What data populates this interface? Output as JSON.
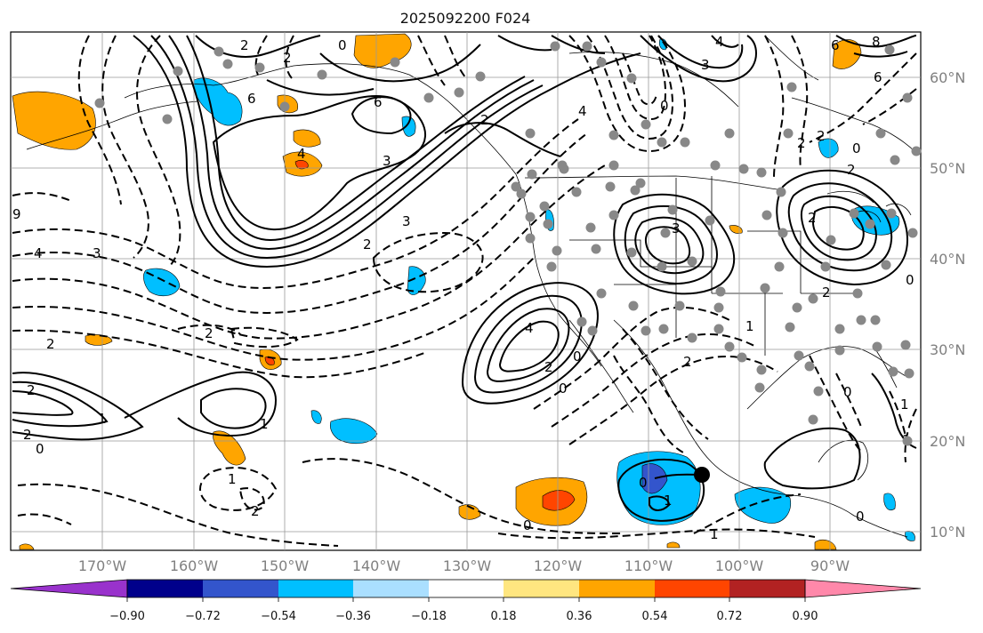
{
  "title": "2025092200 F024",
  "map": {
    "lat_labels": [
      "60°N",
      "50°N",
      "40°N",
      "30°N",
      "20°N",
      "10°N"
    ],
    "lon_labels": [
      "170°W",
      "160°W",
      "150°W",
      "140°W",
      "130°W",
      "120°W",
      "110°W",
      "100°W",
      "90°W"
    ],
    "gridline_color": "#999999",
    "coast_color": "#000000"
  },
  "colorbar": {
    "ticks": [
      "−0.90",
      "−0.72",
      "−0.54",
      "−0.36",
      "−0.18",
      "0.18",
      "0.36",
      "0.54",
      "0.72",
      "0.90"
    ],
    "colors": [
      "#9932cc",
      "#00008b",
      "#3355cc",
      "#00bfff",
      "#aadfff",
      "#ffffff",
      "#ffe680",
      "#ffa500",
      "#ff4500",
      "#b22222",
      "#ff88aa",
      "#ff88aa"
    ],
    "extend": "both"
  },
  "contour_labels": [
    "2",
    "0",
    "2",
    "6",
    "6",
    "4",
    "3",
    "2",
    "4",
    "3",
    "0",
    "4",
    "6",
    "8",
    "6",
    "3",
    "2",
    "2",
    "2",
    "0",
    "2",
    "2",
    "9",
    "4",
    "3",
    "3",
    "2",
    "2",
    "4",
    "2",
    "0",
    "0",
    "2",
    "2",
    "2",
    "1",
    "1",
    "1",
    "0",
    "2",
    "1",
    "0",
    "0",
    "1",
    "0",
    "0",
    "1",
    "1",
    "2",
    "0",
    "1"
  ],
  "markers": [
    {
      "name": "black-dot",
      "lat": 16.5,
      "lon": -103.5
    }
  ]
}
